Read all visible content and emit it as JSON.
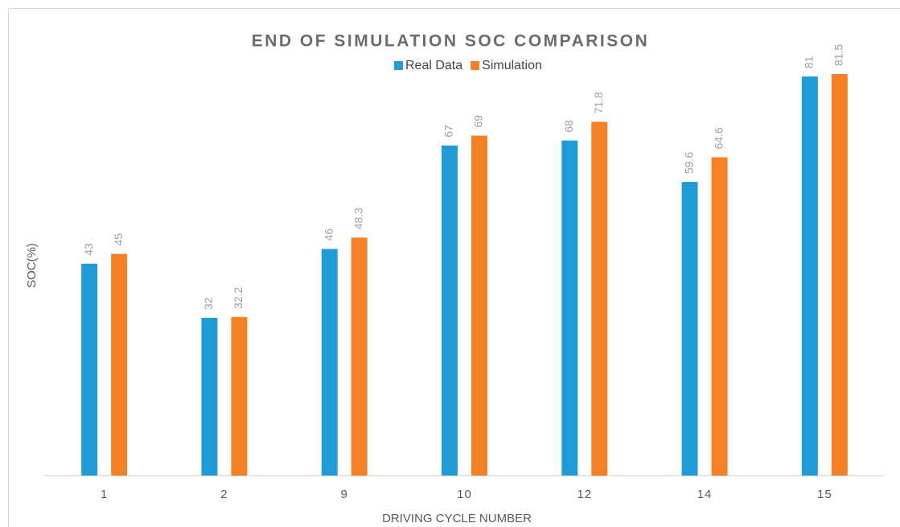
{
  "chart_data": {
    "type": "bar",
    "title": "END OF SIMULATION SOC COMPARISON",
    "x_label": "DRIVING CYCLE NUMBER",
    "y_label": "SOC(%)",
    "categories": [
      "1",
      "2",
      "9",
      "10",
      "12",
      "14",
      "15"
    ],
    "series": [
      {
        "name": "Real Data",
        "color": "#1f9bd7",
        "values": [
          43,
          32,
          46,
          67,
          68,
          59.6,
          81
        ]
      },
      {
        "name": "Simulation",
        "color": "#f58025",
        "values": [
          45,
          32.2,
          48.3,
          69,
          71.8,
          64.6,
          81.5
        ]
      }
    ],
    "ylim": [
      0,
      90
    ],
    "legend": "top"
  }
}
